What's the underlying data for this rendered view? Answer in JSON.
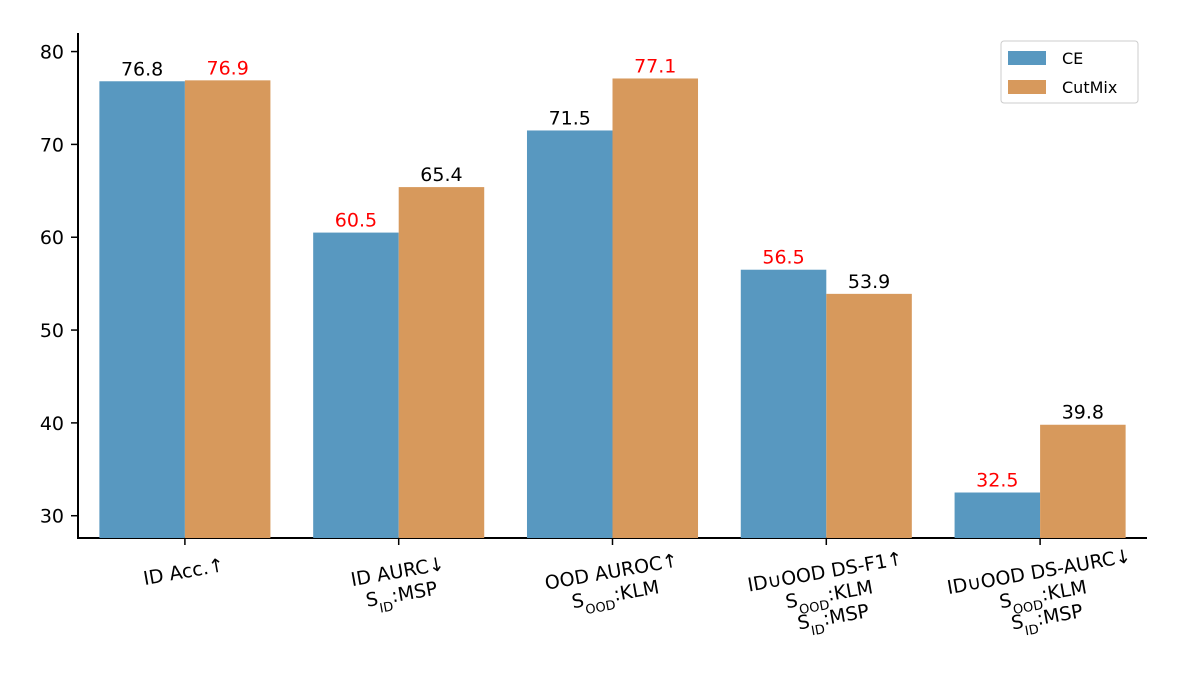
{
  "chart_data": {
    "type": "grouped-bar",
    "categories": [
      [
        "ID Acc.↑"
      ],
      [
        "ID AURC↓",
        [
          "S",
          "ID",
          ":MSP"
        ]
      ],
      [
        "OOD AUROC↑",
        [
          "S",
          "OOD",
          ":KLM"
        ]
      ],
      [
        "ID∪OOD DS-F1↑",
        [
          "S",
          "OOD",
          ":KLM"
        ],
        [
          "S",
          "ID",
          ":MSP"
        ]
      ],
      [
        "ID∪OOD DS-AURC↓",
        [
          "S",
          "OOD",
          ":KLM"
        ],
        [
          "S",
          "ID",
          ":MSP"
        ]
      ]
    ],
    "series": [
      {
        "name": "CE",
        "color": "#5898c0",
        "values": [
          76.8,
          60.5,
          71.5,
          56.5,
          32.5
        ],
        "value_label_colors": [
          "black",
          "red",
          "black",
          "red",
          "red"
        ]
      },
      {
        "name": "CutMix",
        "color": "#d7995c",
        "values": [
          76.9,
          65.4,
          77.1,
          53.9,
          39.8
        ],
        "value_label_colors": [
          "red",
          "black",
          "red",
          "black",
          "black"
        ]
      }
    ],
    "ylim": [
      27.6,
      82
    ],
    "yticks": [
      30,
      40,
      50,
      60,
      70,
      80
    ],
    "legend": "upper right",
    "grid": false
  }
}
